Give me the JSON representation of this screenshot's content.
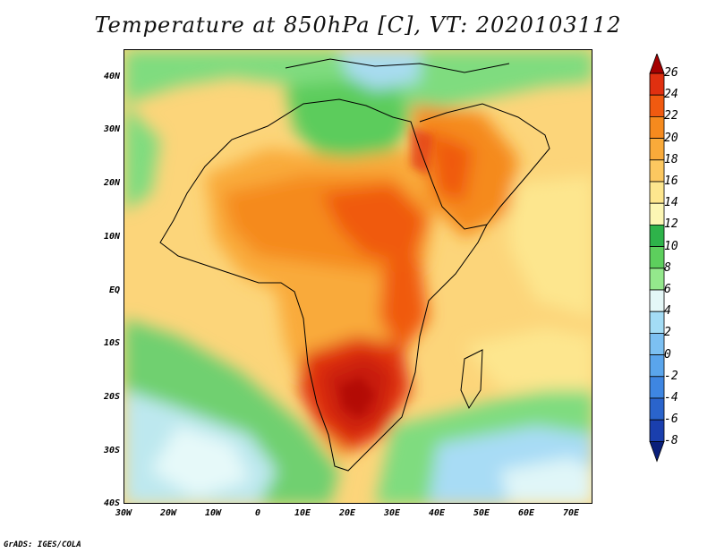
{
  "title": "Temperature at 850hPa [C], VT: 2020103112",
  "credit": "GrADS: IGES/COLA",
  "map": {
    "lon_range": [
      -30,
      75
    ],
    "lat_range": [
      -40,
      45
    ],
    "lat_labels": [
      "40N",
      "30N",
      "20N",
      "10N",
      "EQ",
      "10S",
      "20S",
      "30S",
      "40S"
    ],
    "lon_labels": [
      "30W",
      "20W",
      "10W",
      "0",
      "10E",
      "20E",
      "30E",
      "40E",
      "50E",
      "60E",
      "70E"
    ]
  },
  "colorbar": {
    "labels": [
      "26",
      "24",
      "22",
      "20",
      "18",
      "16",
      "14",
      "12",
      "10",
      "8",
      "6",
      "4",
      "2",
      "0",
      "-2",
      "-4",
      "-6",
      "-8"
    ],
    "colors": [
      "#a50000",
      "#e03010",
      "#f05a10",
      "#f58a1e",
      "#f9aa3a",
      "#fcc860",
      "#fde68e",
      "#fcf6b4",
      "#2eb34a",
      "#5dcf5d",
      "#94e88c",
      "#e4f7f7",
      "#a3dcf5",
      "#7cc0f2",
      "#5aa5ec",
      "#3e86e2",
      "#2a64cc",
      "#1a3fae",
      "#0a1f7a"
    ]
  }
}
